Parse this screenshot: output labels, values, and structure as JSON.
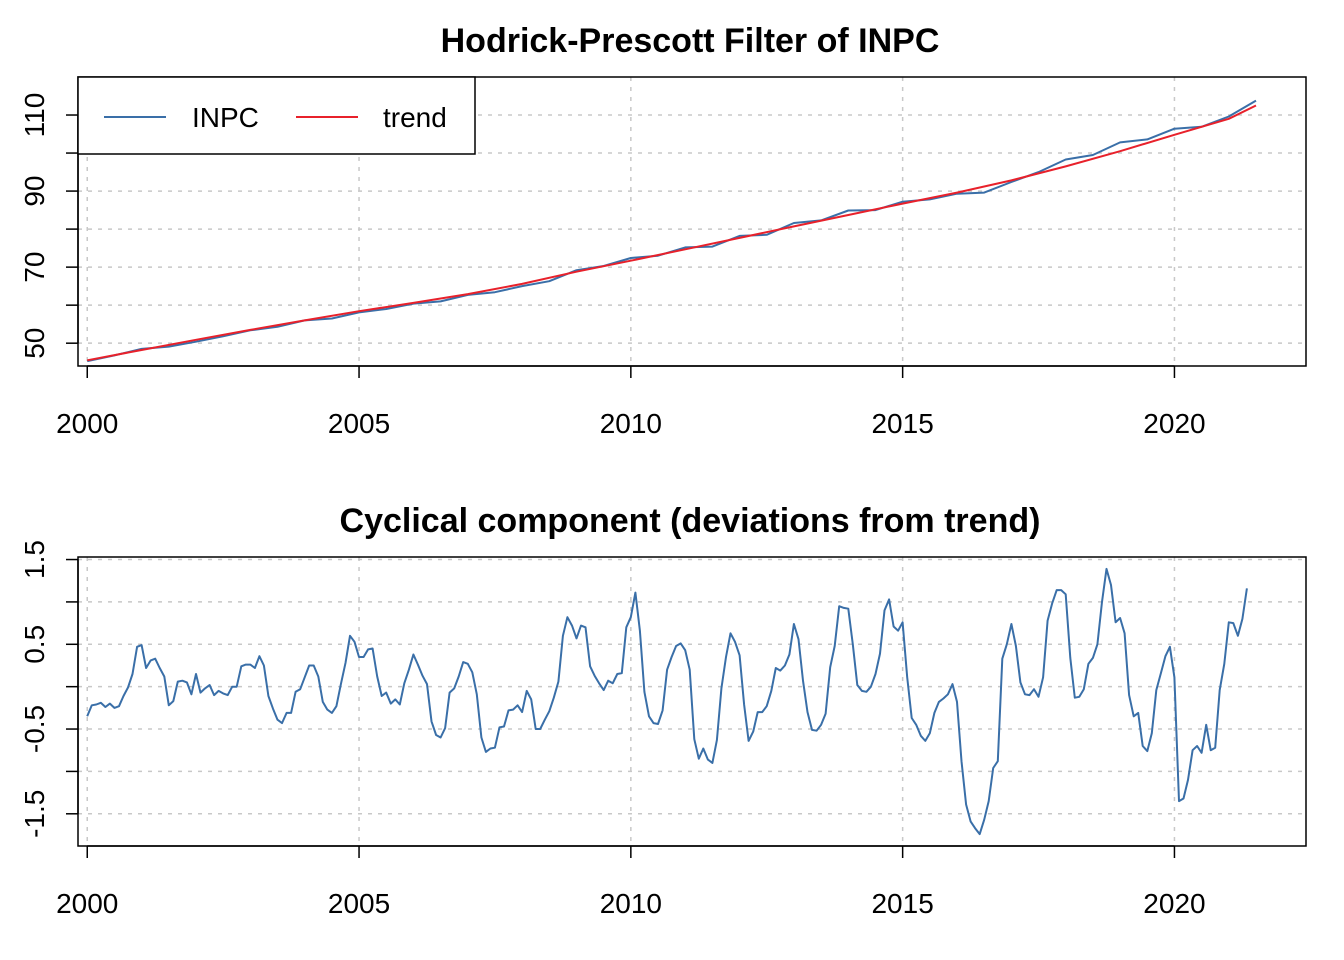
{
  "colors": {
    "inpc": "#3A6FA8",
    "trend": "#E8212B",
    "grid": "#c8c8c8"
  },
  "chart_data": [
    {
      "type": "line",
      "title": "Hodrick-Prescott Filter of INPC",
      "xlabel": "",
      "ylabel": "",
      "xlim": [
        1999.83,
        2022.42
      ],
      "ylim": [
        44,
        120
      ],
      "x_ticks": [
        2000,
        2005,
        2010,
        2015,
        2020
      ],
      "x_tick_labels": [
        "2000",
        "2005",
        "2010",
        "2015",
        "2020"
      ],
      "y_ticks": [
        50,
        70,
        90,
        110
      ],
      "y_tick_labels": [
        "50",
        "70",
        "90",
        "110"
      ],
      "y_grid": [
        50,
        60,
        70,
        80,
        90,
        100,
        110
      ],
      "grid": true,
      "legend": {
        "position": "top-left",
        "entries": [
          "INPC",
          "trend"
        ]
      },
      "series": [
        {
          "name": "INPC",
          "color": "#3A6FA8",
          "x": [
            2000.0,
            2000.5,
            2001.0,
            2001.5,
            2002.0,
            2002.5,
            2003.0,
            2003.5,
            2004.0,
            2004.5,
            2005.0,
            2005.5,
            2006.0,
            2006.5,
            2007.0,
            2007.5,
            2008.0,
            2008.5,
            2009.0,
            2009.5,
            2010.0,
            2010.5,
            2011.0,
            2011.5,
            2012.0,
            2012.5,
            2013.0,
            2013.5,
            2014.0,
            2014.5,
            2015.0,
            2015.5,
            2016.0,
            2016.5,
            2017.0,
            2017.5,
            2018.0,
            2018.5,
            2019.0,
            2019.5,
            2020.0,
            2020.5,
            2021.0,
            2021.5
          ],
          "values": [
            45.3,
            46.8,
            48.5,
            49.1,
            50.4,
            51.8,
            53.4,
            54.3,
            56.0,
            56.5,
            58.1,
            59.0,
            60.4,
            61.0,
            62.7,
            63.4,
            65.0,
            66.3,
            69.2,
            70.3,
            72.4,
            73.0,
            75.2,
            75.4,
            78.2,
            78.5,
            81.6,
            82.3,
            84.9,
            85.0,
            87.2,
            87.8,
            89.3,
            89.6,
            92.4,
            95.0,
            98.3,
            99.5,
            102.8,
            103.6,
            106.4,
            106.9,
            109.6,
            113.8
          ]
        },
        {
          "name": "trend",
          "color": "#E8212B",
          "x": [
            2000.0,
            2001.0,
            2002.0,
            2003.0,
            2004.0,
            2005.0,
            2006.0,
            2007.0,
            2008.0,
            2009.0,
            2010.0,
            2011.0,
            2012.0,
            2013.0,
            2014.0,
            2015.0,
            2016.0,
            2017.0,
            2018.0,
            2019.0,
            2020.0,
            2021.0,
            2021.5
          ],
          "values": [
            45.5,
            48.2,
            50.9,
            53.5,
            56.0,
            58.4,
            60.6,
            62.9,
            65.6,
            68.8,
            71.7,
            74.7,
            77.7,
            80.7,
            83.7,
            86.7,
            89.6,
            92.8,
            96.5,
            100.5,
            104.8,
            109.0,
            112.5
          ]
        }
      ]
    },
    {
      "type": "line",
      "title": "Cyclical component (deviations from trend)",
      "xlabel": "",
      "ylabel": "",
      "xlim": [
        1999.83,
        2022.42
      ],
      "ylim": [
        -1.88,
        1.53
      ],
      "x_ticks": [
        2000,
        2005,
        2010,
        2015,
        2020
      ],
      "x_tick_labels": [
        "2000",
        "2005",
        "2010",
        "2015",
        "2020"
      ],
      "y_ticks": [
        -1.5,
        -0.5,
        0.5,
        1.5
      ],
      "y_tick_labels": [
        "-1.5",
        "-0.5",
        "0.5",
        "1.5"
      ],
      "y_grid": [
        -1.5,
        -1.0,
        -0.5,
        0.0,
        0.5,
        1.0,
        1.5
      ],
      "grid": true,
      "series": [
        {
          "name": "",
          "color": "#3A6FA8",
          "x_start": 2000.0,
          "x_step": 0.08333333,
          "values": [
            -0.35,
            -0.22,
            -0.21,
            -0.19,
            -0.24,
            -0.2,
            -0.25,
            -0.23,
            -0.11,
            -0.01,
            0.15,
            0.47,
            0.49,
            0.22,
            0.31,
            0.33,
            0.22,
            0.12,
            -0.22,
            -0.17,
            0.06,
            0.07,
            0.05,
            -0.09,
            0.15,
            -0.07,
            -0.02,
            0.02,
            -0.1,
            -0.05,
            -0.08,
            -0.1,
            0.0,
            0.0,
            0.24,
            0.26,
            0.26,
            0.22,
            0.36,
            0.25,
            -0.11,
            -0.26,
            -0.39,
            -0.43,
            -0.31,
            -0.31,
            -0.06,
            -0.03,
            0.11,
            0.25,
            0.25,
            0.12,
            -0.18,
            -0.27,
            -0.31,
            -0.23,
            0.03,
            0.28,
            0.6,
            0.53,
            0.35,
            0.35,
            0.44,
            0.45,
            0.12,
            -0.11,
            -0.07,
            -0.2,
            -0.15,
            -0.21,
            0.04,
            0.2,
            0.38,
            0.26,
            0.13,
            0.03,
            -0.41,
            -0.57,
            -0.6,
            -0.49,
            -0.07,
            -0.02,
            0.12,
            0.29,
            0.27,
            0.17,
            -0.09,
            -0.6,
            -0.77,
            -0.73,
            -0.72,
            -0.48,
            -0.47,
            -0.28,
            -0.27,
            -0.22,
            -0.3,
            -0.05,
            -0.15,
            -0.5,
            -0.5,
            -0.39,
            -0.29,
            -0.13,
            0.06,
            0.6,
            0.82,
            0.72,
            0.57,
            0.72,
            0.7,
            0.24,
            0.13,
            0.04,
            -0.04,
            0.07,
            0.04,
            0.15,
            0.16,
            0.7,
            0.82,
            1.11,
            0.66,
            -0.06,
            -0.35,
            -0.43,
            -0.44,
            -0.28,
            0.2,
            0.35,
            0.48,
            0.51,
            0.43,
            0.2,
            -0.62,
            -0.85,
            -0.73,
            -0.86,
            -0.9,
            -0.63,
            -0.02,
            0.35,
            0.63,
            0.53,
            0.37,
            -0.21,
            -0.64,
            -0.53,
            -0.3,
            -0.3,
            -0.23,
            -0.05,
            0.22,
            0.19,
            0.25,
            0.38,
            0.74,
            0.56,
            0.07,
            -0.3,
            -0.51,
            -0.52,
            -0.45,
            -0.32,
            0.23,
            0.48,
            0.95,
            0.93,
            0.92,
            0.5,
            0.02,
            -0.05,
            -0.06,
            0.0,
            0.15,
            0.39,
            0.9,
            1.03,
            0.71,
            0.66,
            0.76,
            0.11,
            -0.37,
            -0.45,
            -0.58,
            -0.64,
            -0.55,
            -0.31,
            -0.18,
            -0.14,
            -0.09,
            0.03,
            -0.18,
            -0.88,
            -1.39,
            -1.59,
            -1.67,
            -1.74,
            -1.57,
            -1.35,
            -0.96,
            -0.88,
            0.33,
            0.5,
            0.74,
            0.48,
            0.05,
            -0.09,
            -0.1,
            -0.03,
            -0.12,
            0.11,
            0.78,
            0.98,
            1.14,
            1.14,
            1.09,
            0.34,
            -0.13,
            -0.12,
            -0.03,
            0.27,
            0.34,
            0.5,
            1.0,
            1.39,
            1.2,
            0.76,
            0.81,
            0.63,
            -0.1,
            -0.35,
            -0.31,
            -0.7,
            -0.76,
            -0.55,
            -0.04,
            0.16,
            0.36,
            0.47,
            0.11,
            -1.35,
            -1.32,
            -1.1,
            -0.75,
            -0.7,
            -0.78,
            -0.45,
            -0.75,
            -0.72,
            -0.04,
            0.27,
            0.76,
            0.75,
            0.6,
            0.8,
            1.16
          ]
        }
      ]
    }
  ]
}
